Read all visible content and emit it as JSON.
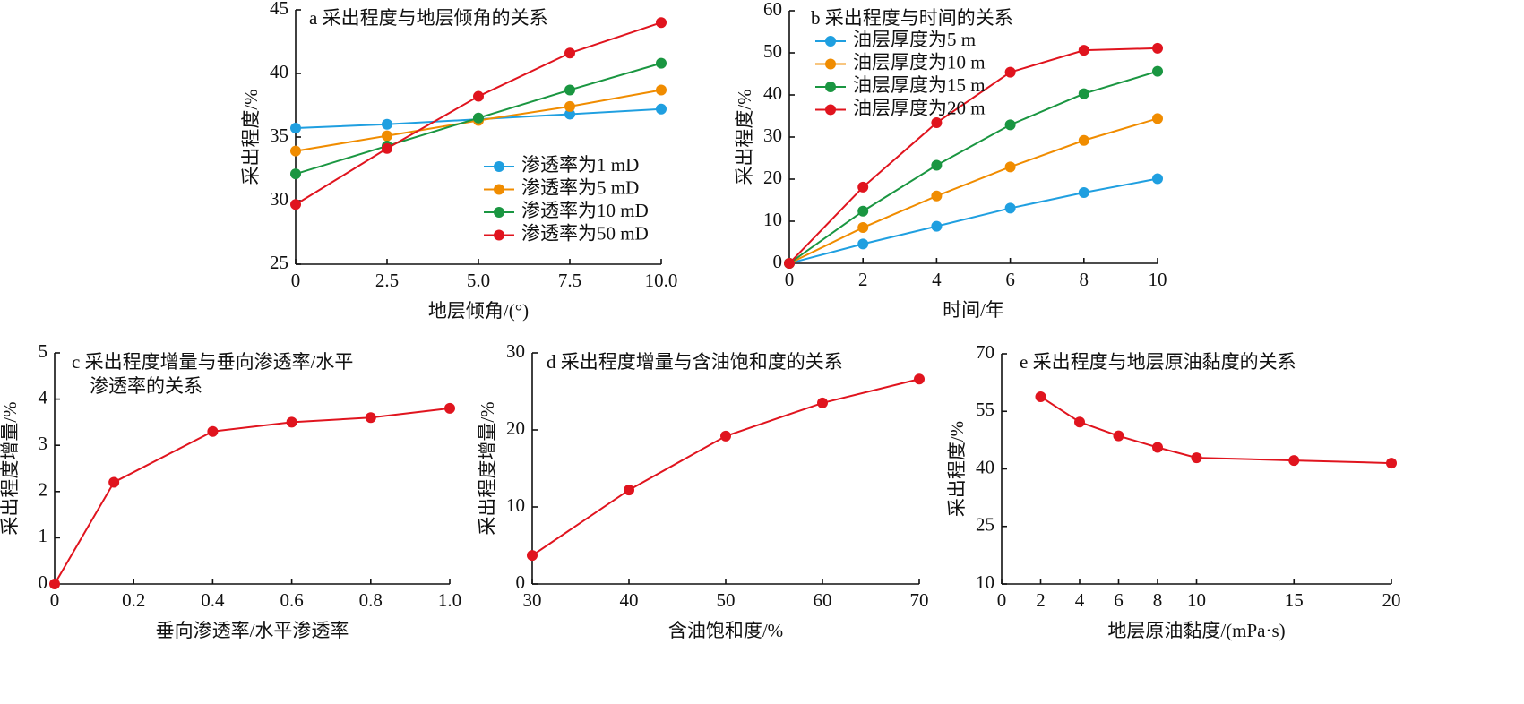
{
  "chart_data": [
    {
      "type": "line",
      "title": "a 采出程度与地层倾角的关系",
      "xlabel": "地层倾角/(°)",
      "ylabel": "采出程度/%",
      "x": [
        0,
        2.5,
        5,
        7.5,
        10
      ],
      "xlim": [
        0,
        10
      ],
      "xticks": [
        0,
        2.5,
        {
          "value": 5,
          "label": "5.0"
        },
        7.5,
        {
          "value": 10,
          "label": "10.0"
        }
      ],
      "ylim": [
        25,
        45
      ],
      "yticks": [
        25,
        30,
        35,
        40,
        45
      ],
      "legend": "lower right",
      "series": [
        {
          "name": "渗透率为1 mD",
          "color": "#1f9fe0",
          "values": [
            35.7,
            36.0,
            36.4,
            36.8,
            37.2
          ]
        },
        {
          "name": "渗透率为5 mD",
          "color": "#f08c00",
          "values": [
            33.9,
            35.1,
            36.3,
            37.4,
            38.7
          ]
        },
        {
          "name": "渗透率为10 mD",
          "color": "#1a9641",
          "values": [
            32.1,
            34.3,
            36.5,
            38.7,
            40.8
          ]
        },
        {
          "name": "渗透率为50 mD",
          "color": "#e0141e",
          "values": [
            29.7,
            34.1,
            38.2,
            41.6,
            44.0
          ]
        }
      ]
    },
    {
      "type": "line",
      "title": "b 采出程度与时间的关系",
      "xlabel": "时间/年",
      "ylabel": "采出程度/%",
      "x": [
        0,
        2,
        4,
        6,
        8,
        10
      ],
      "xlim": [
        0,
        10
      ],
      "xticks": [
        0,
        2,
        4,
        6,
        8,
        10
      ],
      "ylim": [
        0,
        60
      ],
      "yticks": [
        0,
        10,
        20,
        30,
        40,
        50,
        60
      ],
      "legend": "upper left",
      "series": [
        {
          "name": "油层厚度为5 m",
          "color": "#1f9fe0",
          "values": [
            0,
            4.6,
            8.8,
            13.1,
            16.8,
            20.1
          ]
        },
        {
          "name": "油层厚度为10 m",
          "color": "#f08c00",
          "values": [
            0,
            8.5,
            16.0,
            22.9,
            29.2,
            34.4
          ]
        },
        {
          "name": "油层厚度为15 m",
          "color": "#1a9641",
          "values": [
            0,
            12.4,
            23.3,
            32.9,
            40.3,
            45.6
          ]
        },
        {
          "name": "油层厚度为20 m",
          "color": "#e0141e",
          "values": [
            0,
            18.1,
            33.4,
            45.4,
            50.6,
            51.1
          ]
        }
      ]
    },
    {
      "type": "line",
      "title": [
        "c 采出程度增量与垂向渗透率/水平",
        "渗透率的关系"
      ],
      "xlabel": "垂向渗透率/水平渗透率",
      "ylabel": "采出程度增量/%",
      "x": [
        0,
        0.15,
        0.4,
        0.6,
        0.8,
        1.0
      ],
      "xlim": [
        0,
        1
      ],
      "xticks": [
        0,
        0.2,
        0.4,
        0.6,
        0.8,
        {
          "value": 1,
          "label": "1.0"
        }
      ],
      "ylim": [
        0,
        5
      ],
      "yticks": [
        0,
        1,
        2,
        3,
        4,
        5
      ],
      "color": "#e0141e",
      "values": [
        0,
        2.2,
        3.3,
        3.5,
        3.6,
        3.8
      ]
    },
    {
      "type": "line",
      "title": "d 采出程度增量与含油饱和度的关系",
      "xlabel": "含油饱和度/%",
      "ylabel": "采出程度增量/%",
      "x": [
        30,
        40,
        50,
        60,
        70
      ],
      "xlim": [
        30,
        70
      ],
      "xticks": [
        30,
        40,
        50,
        60,
        70
      ],
      "ylim": [
        0,
        30
      ],
      "yticks": [
        0,
        10,
        20,
        30
      ],
      "color": "#e0141e",
      "values": [
        3.7,
        12.2,
        19.2,
        23.5,
        26.6
      ]
    },
    {
      "type": "line",
      "title": "e 采出程度与地层原油黏度的关系",
      "xlabel": "地层原油黏度/(mPa·s)",
      "ylabel": "采出程度/%",
      "x": [
        2,
        4,
        6,
        8,
        10,
        15,
        20
      ],
      "xlim": [
        0,
        20
      ],
      "xticks": [
        0,
        2,
        4,
        6,
        8,
        10,
        15,
        20
      ],
      "ylim": [
        10,
        70
      ],
      "yticks": [
        10,
        25,
        40,
        55,
        70
      ],
      "color": "#e0141e",
      "values": [
        58.8,
        52.2,
        48.6,
        45.6,
        42.9,
        42.2,
        41.5
      ]
    }
  ]
}
